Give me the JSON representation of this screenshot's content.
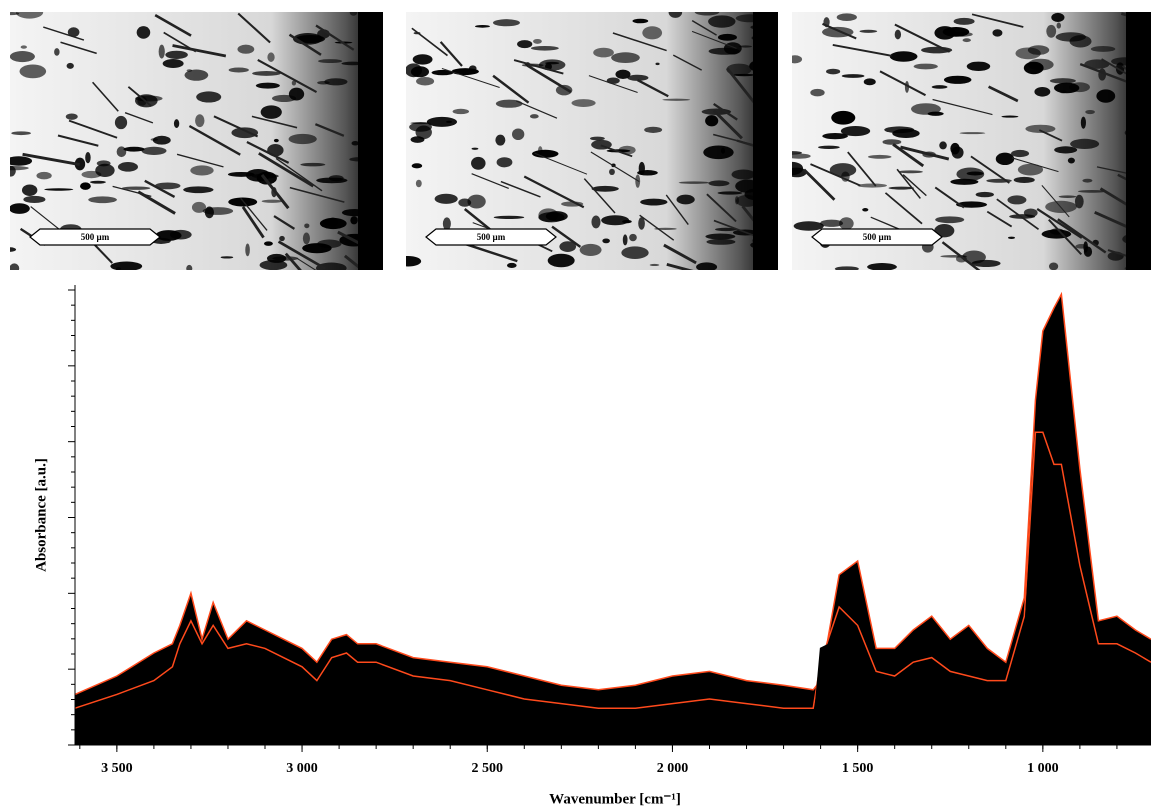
{
  "images": [
    {
      "scale_bar": "500 µm"
    },
    {
      "scale_bar": "500 µm"
    },
    {
      "scale_bar": "500 µm"
    }
  ],
  "chart_data": {
    "type": "area",
    "x_label": "Wavenumber [cm⁻¹]",
    "y_label": "Absorbance [a.u.]",
    "x": [
      3613,
      3500,
      3400,
      3350,
      3330,
      3300,
      3270,
      3240,
      3200,
      3150,
      3100,
      3000,
      2960,
      2920,
      2880,
      2850,
      2800,
      2700,
      2600,
      2500,
      2400,
      2300,
      2200,
      2100,
      2000,
      1900,
      1800,
      1700,
      1620,
      1600,
      1550,
      1500,
      1450,
      1400,
      1350,
      1300,
      1250,
      1200,
      1150,
      1100,
      1050,
      1020,
      1000,
      970,
      950,
      900,
      850,
      800,
      750,
      708
    ],
    "series": [
      {
        "color": "#ff4a1c",
        "values": [
          11,
          15,
          20,
          22,
          26,
          33,
          23,
          31,
          23,
          27,
          25,
          21,
          18,
          23,
          24,
          22,
          22,
          19,
          18,
          17,
          15,
          13,
          12,
          13,
          15,
          16,
          14,
          13,
          12,
          14,
          37,
          40,
          21,
          21,
          25,
          28,
          23,
          26,
          21,
          18,
          32,
          75,
          90,
          95,
          98,
          60,
          27,
          28,
          25,
          23
        ]
      },
      {
        "color": "#ff4a1c",
        "values": [
          8,
          11,
          14,
          17,
          22,
          27,
          22,
          26,
          21,
          22,
          21,
          17,
          14,
          19,
          20,
          18,
          18,
          15,
          14,
          12,
          10,
          9,
          8,
          8,
          9,
          10,
          9,
          8,
          8,
          18,
          30,
          26,
          16,
          15,
          18,
          19,
          16,
          15,
          14,
          14,
          28,
          68,
          68,
          61,
          61,
          39,
          22,
          22,
          20,
          18
        ]
      },
      {
        "color": "#000000",
        "values": [
          4,
          6,
          8,
          12,
          17,
          20,
          20,
          20,
          18,
          17,
          16,
          13,
          9,
          14,
          15,
          14,
          13,
          11,
          9,
          7,
          5,
          4,
          3,
          3,
          3,
          3,
          3,
          3,
          3,
          21,
          23,
          12,
          10,
          9,
          11,
          10,
          9,
          4,
          7,
          10,
          23,
          60,
          45,
          27,
          23,
          18,
          17,
          16,
          14,
          13
        ]
      }
    ],
    "xlim": [
      3613,
      708
    ],
    "ylim": [
      0,
      100
    ],
    "xticks": [
      {
        "value": 3500,
        "label": "3 500"
      },
      {
        "value": 3000,
        "label": "3 000"
      },
      {
        "value": 2500,
        "label": "2 500"
      },
      {
        "value": 2000,
        "label": "2 000"
      },
      {
        "value": 1500,
        "label": "1 500"
      },
      {
        "value": 1000,
        "label": "1 000"
      }
    ]
  }
}
